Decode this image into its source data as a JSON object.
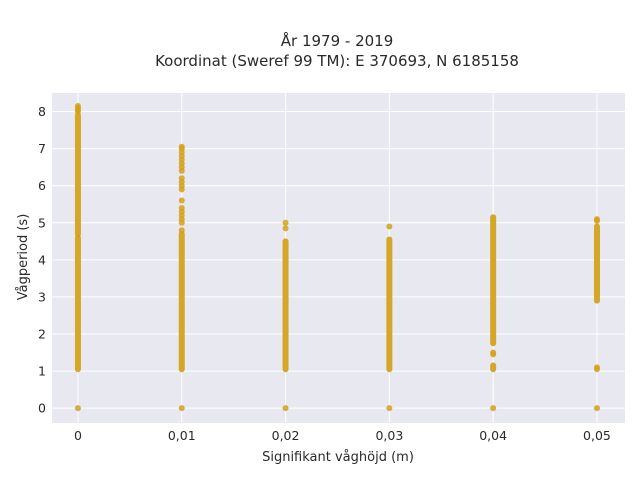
{
  "chart_data": {
    "type": "scatter",
    "title": "År 1979 - 2019",
    "subtitle": "Koordinat (Sweref 99 TM): E 370693, N 6185158",
    "xlabel": "Signifikant våghöjd (m)",
    "ylabel": "Vågperiod (s)",
    "xlim": [
      -0.0025,
      0.0527
    ],
    "ylim": [
      -0.4,
      8.5
    ],
    "xticks": [
      0,
      0.01,
      0.02,
      0.03,
      0.04,
      0.05
    ],
    "xtick_labels": [
      "0",
      "0,01",
      "0,02",
      "0,03",
      "0,04",
      "0,05"
    ],
    "yticks": [
      0,
      1,
      2,
      3,
      4,
      5,
      6,
      7,
      8
    ],
    "ytick_labels": [
      "0",
      "1",
      "2",
      "3",
      "4",
      "5",
      "6",
      "7",
      "8"
    ],
    "grid": true,
    "colors": {
      "plot_bg": "#e8e8f0",
      "grid": "#ffffff",
      "marker": "#d4a017"
    },
    "columns": [
      {
        "x": 0,
        "ranges": [
          [
            1.05,
            4.6
          ],
          [
            4.7,
            7.9
          ]
        ],
        "points": [
          0,
          8.0,
          8.05,
          8.1,
          8.15
        ]
      },
      {
        "x": 0.01,
        "ranges": [
          [
            1.05,
            4.7
          ]
        ],
        "points": [
          0,
          4.8,
          5.0,
          5.1,
          5.2,
          5.3,
          5.4,
          5.6,
          5.9,
          6.0,
          6.1,
          6.2,
          6.4,
          6.5,
          6.6,
          6.7,
          6.8,
          6.9,
          7.0,
          7.05
        ]
      },
      {
        "x": 0.02,
        "ranges": [
          [
            1.05,
            4.5
          ]
        ],
        "points": [
          0,
          4.85,
          5.0
        ]
      },
      {
        "x": 0.03,
        "ranges": [
          [
            1.05,
            4.55
          ]
        ],
        "points": [
          0,
          4.9
        ]
      },
      {
        "x": 0.04,
        "ranges": [
          [
            1.05,
            1.15
          ],
          [
            1.75,
            5.15
          ]
        ],
        "points": [
          0,
          1.45,
          1.5
        ]
      },
      {
        "x": 0.05,
        "ranges": [
          [
            2.9,
            4.9
          ]
        ],
        "points": [
          0,
          1.05,
          1.1,
          5.05,
          5.1
        ]
      }
    ]
  }
}
